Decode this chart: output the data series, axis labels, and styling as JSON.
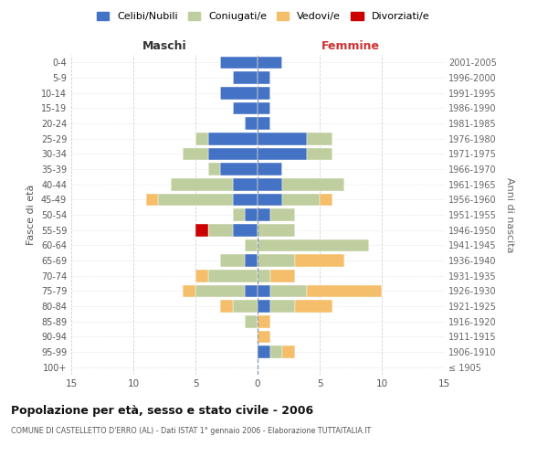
{
  "age_groups": [
    "100+",
    "95-99",
    "90-94",
    "85-89",
    "80-84",
    "75-79",
    "70-74",
    "65-69",
    "60-64",
    "55-59",
    "50-54",
    "45-49",
    "40-44",
    "35-39",
    "30-34",
    "25-29",
    "20-24",
    "15-19",
    "10-14",
    "5-9",
    "0-4"
  ],
  "birth_years": [
    "≤ 1905",
    "1906-1910",
    "1911-1915",
    "1916-1920",
    "1921-1925",
    "1926-1930",
    "1931-1935",
    "1936-1940",
    "1941-1945",
    "1946-1950",
    "1951-1955",
    "1956-1960",
    "1961-1965",
    "1966-1970",
    "1971-1975",
    "1976-1980",
    "1981-1985",
    "1986-1990",
    "1991-1995",
    "1996-2000",
    "2001-2005"
  ],
  "maschi": {
    "celibi": [
      0,
      0,
      0,
      0,
      0,
      1,
      0,
      1,
      0,
      2,
      1,
      2,
      2,
      3,
      4,
      4,
      1,
      2,
      3,
      2,
      3
    ],
    "coniugati": [
      0,
      0,
      0,
      1,
      2,
      4,
      4,
      2,
      1,
      2,
      1,
      6,
      5,
      1,
      2,
      1,
      0,
      0,
      0,
      0,
      0
    ],
    "vedovi": [
      0,
      0,
      0,
      0,
      1,
      1,
      1,
      0,
      0,
      0,
      0,
      1,
      0,
      0,
      0,
      0,
      0,
      0,
      0,
      0,
      0
    ],
    "divorziati": [
      0,
      0,
      0,
      0,
      0,
      0,
      0,
      0,
      0,
      1,
      0,
      0,
      0,
      0,
      0,
      0,
      0,
      0,
      0,
      0,
      0
    ]
  },
  "femmine": {
    "nubili": [
      0,
      1,
      0,
      0,
      1,
      1,
      0,
      0,
      0,
      0,
      1,
      2,
      2,
      2,
      4,
      4,
      1,
      1,
      1,
      1,
      2
    ],
    "coniugate": [
      0,
      1,
      0,
      0,
      2,
      3,
      1,
      3,
      9,
      3,
      2,
      3,
      5,
      0,
      2,
      2,
      0,
      0,
      0,
      0,
      0
    ],
    "vedove": [
      0,
      1,
      1,
      1,
      3,
      6,
      2,
      4,
      0,
      0,
      0,
      1,
      0,
      0,
      0,
      0,
      0,
      0,
      0,
      0,
      0
    ],
    "divorziate": [
      0,
      0,
      0,
      0,
      0,
      0,
      0,
      0,
      0,
      0,
      0,
      0,
      0,
      0,
      0,
      0,
      0,
      0,
      0,
      0,
      0
    ]
  },
  "colors": {
    "celibi_nubili": "#4472C4",
    "coniugati": "#BFCE9E",
    "vedovi": "#F5BE6A",
    "divorziati": "#CC0000"
  },
  "xlim": 15,
  "title": "Popolazione per età, sesso e stato civile - 2006",
  "subtitle": "COMUNE DI CASTELLETTO D'ERRO (AL) - Dati ISTAT 1° gennaio 2006 - Elaborazione TUTTAITALIA.IT",
  "ylabel": "Fasce di età",
  "ylabel_right": "Anni di nascita",
  "legend_labels": [
    "Celibi/Nubili",
    "Coniugati/e",
    "Vedovi/e",
    "Divorziati/e"
  ],
  "maschi_label": "Maschi",
  "femmine_label": "Femmine",
  "bg_color": "#FFFFFF",
  "grid_color": "#CCCCCC"
}
